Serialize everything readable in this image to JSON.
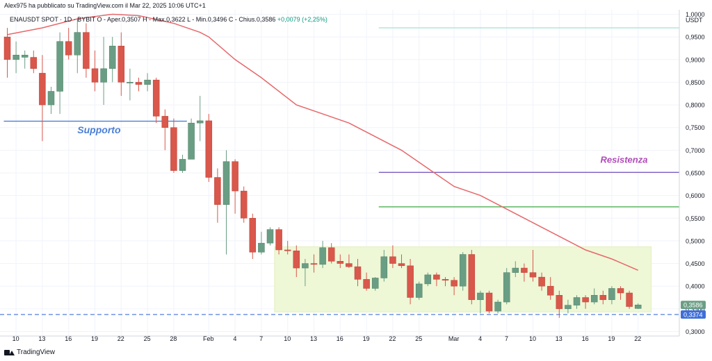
{
  "header": {
    "published_by": "Alex975 ha pubblicato su TradingView.com il Mar 22, 2025 10:06 UTC+1"
  },
  "symbol_bar": {
    "symbol": "ENAUSDT SPOT · 1D · BYBIT",
    "ohlc": "O - Aper.0,3507  H - Max.0,3622  L - Min.0,3496  C - Chius.0,3586",
    "change": "+0,0079 (+2,25%)"
  },
  "footer": {
    "brand": "TradingView"
  },
  "colors": {
    "up": "#6a9e84",
    "down": "#d9574b",
    "ma": "#e8676a",
    "support": "#4a7fd6",
    "resistance": "#7b5cc4",
    "green_line": "#4caf50",
    "top_line": "#a9ddd6",
    "zone_fill": "#eef7d6",
    "dashed": "#3f6fd8"
  },
  "chart_data": {
    "type": "candlestick",
    "currency": "USDT",
    "y_ticks": [
      "1,0000",
      "0,9500",
      "0,9000",
      "0,8500",
      "0,8000",
      "0,7500",
      "0,7000",
      "0,6500",
      "0,6000",
      "0,5500",
      "0,5000",
      "0,4500",
      "0,4000",
      "0,3500",
      "0,3000"
    ],
    "y_tick_values": [
      1.0,
      0.95,
      0.9,
      0.85,
      0.8,
      0.75,
      0.7,
      0.65,
      0.6,
      0.55,
      0.5,
      0.45,
      0.4,
      0.35,
      0.3
    ],
    "ylim": [
      0.29,
      1.01
    ],
    "x_ticks": [
      {
        "label": "10",
        "idx": 1
      },
      {
        "label": "13",
        "idx": 4
      },
      {
        "label": "16",
        "idx": 7
      },
      {
        "label": "19",
        "idx": 10
      },
      {
        "label": "22",
        "idx": 13
      },
      {
        "label": "25",
        "idx": 16
      },
      {
        "label": "28",
        "idx": 19
      },
      {
        "label": "Feb",
        "idx": 23
      },
      {
        "label": "4",
        "idx": 26
      },
      {
        "label": "7",
        "idx": 29
      },
      {
        "label": "10",
        "idx": 32
      },
      {
        "label": "13",
        "idx": 35
      },
      {
        "label": "16",
        "idx": 38
      },
      {
        "label": "19",
        "idx": 41
      },
      {
        "label": "22",
        "idx": 44
      },
      {
        "label": "25",
        "idx": 47
      },
      {
        "label": "Mar",
        "idx": 51
      },
      {
        "label": "4",
        "idx": 54
      },
      {
        "label": "7",
        "idx": 57
      },
      {
        "label": "10",
        "idx": 60
      },
      {
        "label": "13",
        "idx": 63
      },
      {
        "label": "16",
        "idx": 66
      },
      {
        "label": "19",
        "idx": 69
      },
      {
        "label": "22",
        "idx": 72
      }
    ],
    "candles": [
      [
        0.95,
        0.97,
        0.86,
        0.9
      ],
      [
        0.9,
        0.94,
        0.87,
        0.91
      ],
      [
        0.905,
        0.92,
        0.88,
        0.91
      ],
      [
        0.905,
        0.92,
        0.87,
        0.88
      ],
      [
        0.87,
        0.91,
        0.72,
        0.8
      ],
      [
        0.8,
        0.84,
        0.78,
        0.83
      ],
      [
        0.83,
        0.96,
        0.78,
        0.94
      ],
      [
        0.94,
        0.97,
        0.9,
        0.91
      ],
      [
        0.91,
        0.99,
        0.87,
        0.96
      ],
      [
        0.96,
        0.98,
        0.86,
        0.88
      ],
      [
        0.88,
        0.92,
        0.83,
        0.85
      ],
      [
        0.85,
        0.95,
        0.8,
        0.88
      ],
      [
        0.88,
        0.95,
        0.85,
        0.93
      ],
      [
        0.93,
        0.96,
        0.82,
        0.85
      ],
      [
        0.85,
        0.88,
        0.81,
        0.85
      ],
      [
        0.85,
        0.86,
        0.83,
        0.845
      ],
      [
        0.845,
        0.87,
        0.83,
        0.855
      ],
      [
        0.855,
        0.86,
        0.76,
        0.775
      ],
      [
        0.775,
        0.79,
        0.7,
        0.75
      ],
      [
        0.75,
        0.77,
        0.65,
        0.655
      ],
      [
        0.655,
        0.69,
        0.65,
        0.68
      ],
      [
        0.68,
        0.77,
        0.68,
        0.76
      ],
      [
        0.76,
        0.82,
        0.72,
        0.765
      ],
      [
        0.765,
        0.78,
        0.63,
        0.64
      ],
      [
        0.64,
        0.66,
        0.54,
        0.58
      ],
      [
        0.58,
        0.7,
        0.47,
        0.675
      ],
      [
        0.675,
        0.68,
        0.56,
        0.61
      ],
      [
        0.61,
        0.62,
        0.54,
        0.55
      ],
      [
        0.55,
        0.56,
        0.46,
        0.475
      ],
      [
        0.475,
        0.52,
        0.47,
        0.495
      ],
      [
        0.495,
        0.53,
        0.49,
        0.525
      ],
      [
        0.525,
        0.53,
        0.47,
        0.48
      ],
      [
        0.48,
        0.5,
        0.47,
        0.478
      ],
      [
        0.478,
        0.49,
        0.42,
        0.44
      ],
      [
        0.44,
        0.46,
        0.4,
        0.45
      ],
      [
        0.45,
        0.47,
        0.43,
        0.448
      ],
      [
        0.448,
        0.5,
        0.44,
        0.485
      ],
      [
        0.485,
        0.495,
        0.45,
        0.455
      ],
      [
        0.455,
        0.47,
        0.44,
        0.45
      ],
      [
        0.45,
        0.47,
        0.44,
        0.443
      ],
      [
        0.443,
        0.46,
        0.4,
        0.415
      ],
      [
        0.415,
        0.43,
        0.39,
        0.395
      ],
      [
        0.395,
        0.42,
        0.39,
        0.418
      ],
      [
        0.418,
        0.48,
        0.41,
        0.465
      ],
      [
        0.465,
        0.49,
        0.44,
        0.45
      ],
      [
        0.45,
        0.47,
        0.44,
        0.445
      ],
      [
        0.445,
        0.46,
        0.36,
        0.375
      ],
      [
        0.375,
        0.41,
        0.37,
        0.405
      ],
      [
        0.405,
        0.43,
        0.4,
        0.425
      ],
      [
        0.425,
        0.43,
        0.4,
        0.415
      ],
      [
        0.415,
        0.42,
        0.4,
        0.413
      ],
      [
        0.413,
        0.42,
        0.38,
        0.4
      ],
      [
        0.4,
        0.475,
        0.39,
        0.47
      ],
      [
        0.47,
        0.48,
        0.36,
        0.37
      ],
      [
        0.37,
        0.39,
        0.34,
        0.385
      ],
      [
        0.385,
        0.39,
        0.34,
        0.345
      ],
      [
        0.345,
        0.37,
        0.34,
        0.365
      ],
      [
        0.365,
        0.44,
        0.36,
        0.43
      ],
      [
        0.43,
        0.455,
        0.42,
        0.44
      ],
      [
        0.44,
        0.45,
        0.41,
        0.43
      ],
      [
        0.43,
        0.48,
        0.41,
        0.42
      ],
      [
        0.42,
        0.43,
        0.39,
        0.4
      ],
      [
        0.4,
        0.42,
        0.37,
        0.38
      ],
      [
        0.38,
        0.39,
        0.33,
        0.35
      ],
      [
        0.35,
        0.37,
        0.34,
        0.358
      ],
      [
        0.358,
        0.38,
        0.35,
        0.375
      ],
      [
        0.375,
        0.38,
        0.35,
        0.365
      ],
      [
        0.365,
        0.395,
        0.36,
        0.38
      ],
      [
        0.38,
        0.39,
        0.36,
        0.37
      ],
      [
        0.37,
        0.4,
        0.36,
        0.395
      ],
      [
        0.395,
        0.4,
        0.37,
        0.385
      ],
      [
        0.385,
        0.39,
        0.35,
        0.355
      ],
      [
        0.3507,
        0.3622,
        0.3496,
        0.3586
      ]
    ],
    "moving_average": [
      [
        0,
        0.955
      ],
      [
        4,
        0.97
      ],
      [
        8,
        0.99
      ],
      [
        12,
        1.0
      ],
      [
        15,
        0.997
      ],
      [
        19,
        0.98
      ],
      [
        22,
        0.96
      ],
      [
        23,
        0.95
      ],
      [
        26,
        0.9
      ],
      [
        29,
        0.86
      ],
      [
        33,
        0.8
      ],
      [
        36,
        0.78
      ],
      [
        39,
        0.76
      ],
      [
        42,
        0.73
      ],
      [
        45,
        0.7
      ],
      [
        48,
        0.66
      ],
      [
        51,
        0.62
      ],
      [
        54,
        0.6
      ],
      [
        57,
        0.57
      ],
      [
        60,
        0.54
      ],
      [
        63,
        0.51
      ],
      [
        66,
        0.48
      ],
      [
        69,
        0.46
      ],
      [
        72,
        0.435
      ]
    ],
    "support_label": "Supporto",
    "support_level": 0.764,
    "resistance_label": "Resistenza",
    "resistance_level": 0.651,
    "green_level": 0.575,
    "top_level": 0.97,
    "zone": {
      "low": 0.343,
      "high": 0.487,
      "from_idx": 30.5,
      "to_idx": 73.5
    },
    "dashed_level": 0.3374,
    "last_price_label": "0,3586",
    "dashed_label": "0,3374"
  }
}
